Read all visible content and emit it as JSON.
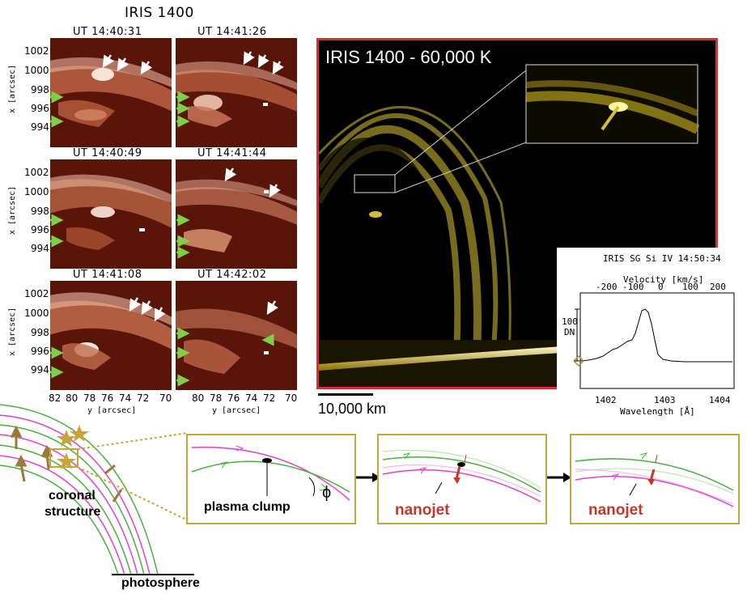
{
  "figure": {
    "iris_title": "IRIS 1400",
    "panels": [
      {
        "time": "UT 14:40:31"
      },
      {
        "time": "UT 14:41:26"
      },
      {
        "time": "UT 14:40:49"
      },
      {
        "time": "UT 14:41:44"
      },
      {
        "time": "UT 14:41:08"
      },
      {
        "time": "UT 14:42:02"
      }
    ],
    "x_ticks": [
      "1002",
      "1000",
      "998",
      "996",
      "994"
    ],
    "x_axis_label": "x [arcsec]",
    "y_ticks_left": [
      "82",
      "80",
      "78",
      "76",
      "74",
      "72",
      "70"
    ],
    "y_ticks_right": [
      "80",
      "78",
      "76",
      "74",
      "72",
      "70"
    ],
    "y_axis_label": "y [arcsec]",
    "big_image_label": "IRIS 1400 - 60,000 K",
    "scale_bar_label": "10,000 km",
    "spectrum": {
      "title": "IRIS SG Si IV 14:50:34",
      "top_axis_label": "Velocity [km/s]",
      "top_ticks": [
        "-200",
        "-100",
        "0",
        "100",
        "200"
      ],
      "bottom_ticks": [
        "1402",
        "1403",
        "1404"
      ],
      "bottom_axis_label": "Wavelength [Å]",
      "y_scale_label": "100",
      "y_unit": "DN"
    },
    "schematic": {
      "coronal_label_1": "coronal",
      "coronal_label_2": "structure",
      "photosphere_label": "photosphere",
      "plasma_clump_label": "plasma clump",
      "phi_symbol": "ϕ",
      "nanojet_label_1": "nanojet",
      "nanojet_label_2": "nanojet"
    },
    "colors": {
      "frame_red": "#d0312d",
      "gold": "#c8a53a",
      "green_field": "#4caf3f",
      "magenta_field": "#e040d0",
      "nanojet_red": "#c0392b",
      "arrow_green": "#7ed04b"
    }
  }
}
